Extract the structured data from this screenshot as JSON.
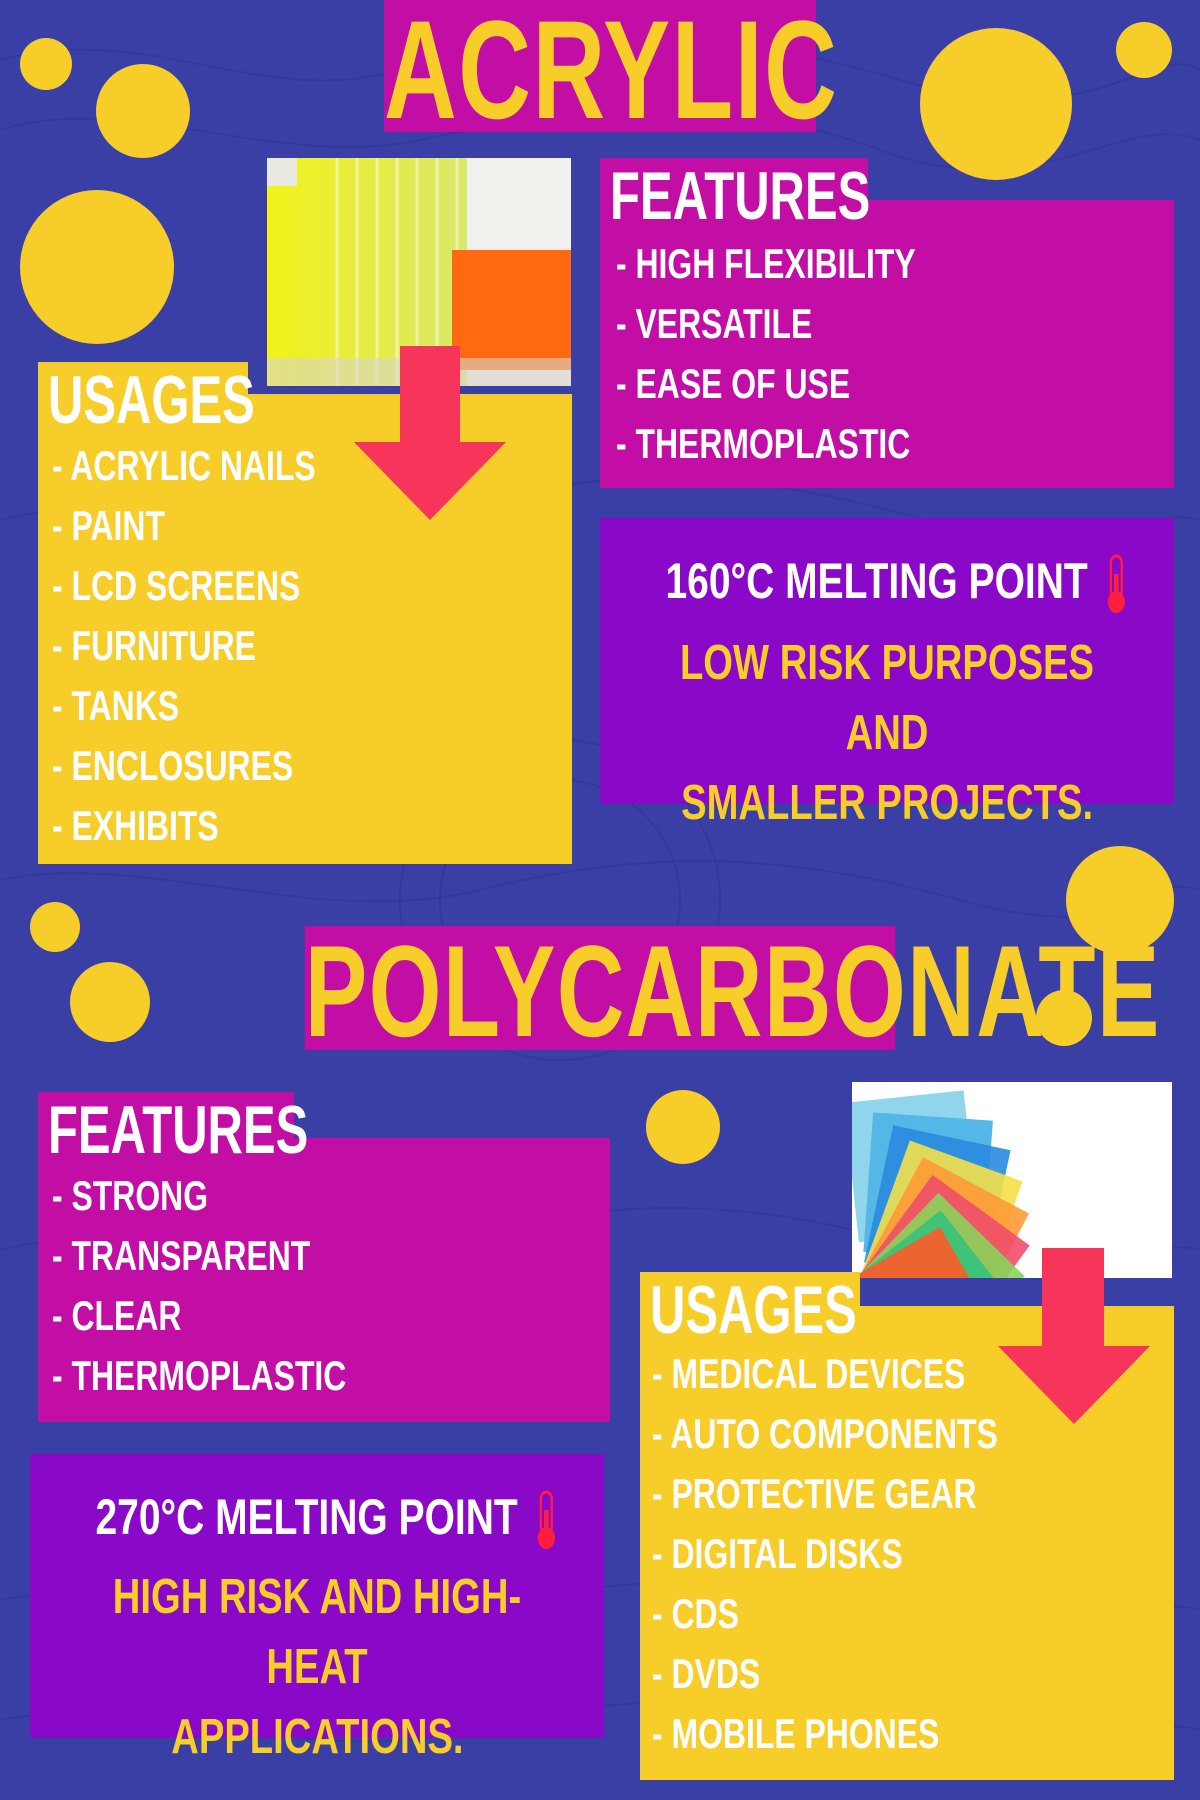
{
  "colors": {
    "background": "#3a3fa6",
    "yellow": "#f7cd2a",
    "magenta": "#c20ea4",
    "purple": "#8a08c8",
    "arrow": "#f7345a",
    "white": "#ffffff"
  },
  "acrylic": {
    "title": "ACRYLIC",
    "features": {
      "heading": "FEATURES",
      "items": [
        "- HIGH FLEXIBILITY",
        "- VERSATILE",
        "- EASE OF USE",
        "- THERMOPLASTIC"
      ]
    },
    "usages": {
      "heading": "USAGES",
      "items": [
        "- ACRYLIC NAILS",
        "- PAINT",
        "- LCD SCREENS",
        "- FURNITURE",
        "- TANKS",
        "- ENCLOSURES",
        "- EXHIBITS"
      ]
    },
    "melting_point": "160°C MELTING POINT",
    "note_lines": [
      "LOW RISK PURPOSES AND",
      "SMALLER PROJECTS."
    ],
    "icons": [
      "down-arrow-icon",
      "thermometer-icon"
    ]
  },
  "polycarbonate": {
    "title": "POLYCARBONATE",
    "features": {
      "heading": "FEATURES",
      "items": [
        "- STRONG",
        "- TRANSPARENT",
        "- CLEAR",
        "- THERMOPLASTIC"
      ]
    },
    "usages": {
      "heading": "USAGES",
      "items": [
        "- MEDICAL DEVICES",
        "- AUTO COMPONENTS",
        "- PROTECTIVE GEAR",
        "- DIGITAL DISKS",
        "- CDS",
        "- DVDS",
        "- MOBILE PHONES"
      ]
    },
    "melting_point": "270°C MELTING POINT",
    "note_lines": [
      "HIGH RISK AND HIGH-HEAT",
      "APPLICATIONS."
    ],
    "icons": [
      "down-arrow-icon",
      "thermometer-icon"
    ]
  }
}
